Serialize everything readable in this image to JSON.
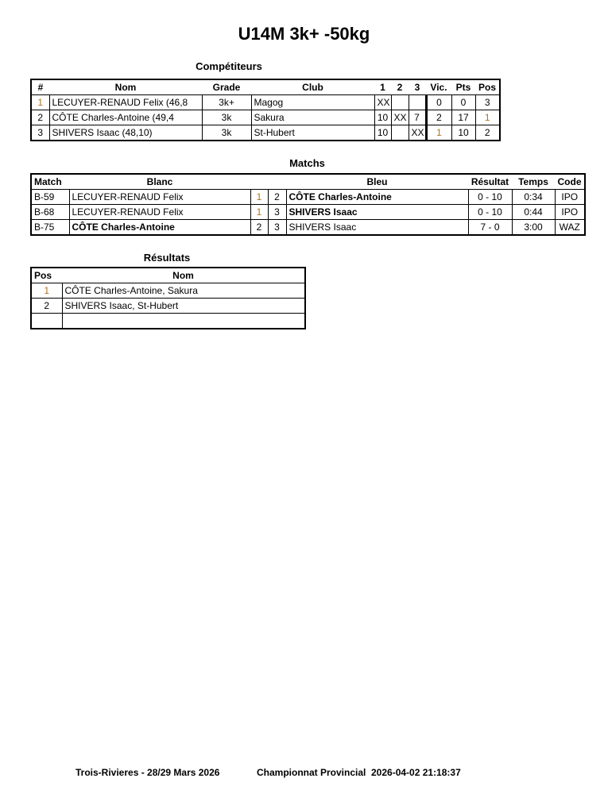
{
  "title": "U14M 3k+ -50kg",
  "competitors": {
    "heading": "Compétiteurs",
    "columns": [
      "#",
      "Nom",
      "Grade",
      "Club",
      "1",
      "2",
      "3",
      "Vic.",
      "Pts",
      "Pos"
    ],
    "rows": [
      [
        "1",
        "LECUYER-RENAUD Felix (46,8",
        "3k+",
        "Magog",
        "XX",
        "",
        "",
        "0",
        "0",
        "3"
      ],
      [
        "2",
        "CÔTE Charles-Antoine (49,4",
        "3k",
        "Sakura",
        "10",
        "XX",
        "7",
        "2",
        "17",
        "1"
      ],
      [
        "3",
        "SHIVERS Isaac (48,10)",
        "3k",
        "St-Hubert",
        "10",
        "",
        "XX",
        "1",
        "10",
        "2"
      ]
    ]
  },
  "matches": {
    "heading": "Matchs",
    "columns": [
      "Match",
      "Blanc",
      "",
      "",
      "Bleu",
      "Résultat",
      "Temps",
      "Code"
    ],
    "rows": [
      [
        "B-59",
        "LECUYER-RENAUD Felix",
        "1",
        "2",
        "CÔTE Charles-Antoine",
        "0 - 10",
        "0:34",
        "IPO"
      ],
      [
        "B-68",
        "LECUYER-RENAUD Felix",
        "1",
        "3",
        "SHIVERS Isaac",
        "0 - 10",
        "0:44",
        "IPO"
      ],
      [
        "B-75",
        "CÔTE Charles-Antoine",
        "2",
        "3",
        "SHIVERS Isaac",
        "7 - 0",
        "3:00",
        "WAZ"
      ]
    ]
  },
  "results": {
    "heading": "Résultats",
    "columns": [
      "Pos",
      "Nom"
    ],
    "rows": [
      [
        "1",
        "CÔTE Charles-Antoine, Sakura"
      ],
      [
        "2",
        "SHIVERS Isaac, St-Hubert"
      ],
      [
        "",
        ""
      ]
    ]
  },
  "footer": {
    "location": "Trois-Rivieres - 28/29 Mars 2026",
    "event": "Championnat Provincial",
    "timestamp": "2026-04-02 21:18:37"
  }
}
